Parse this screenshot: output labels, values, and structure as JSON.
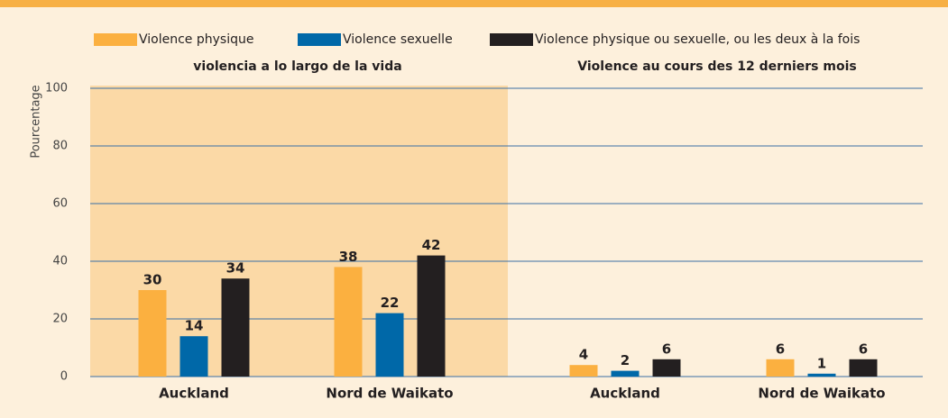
{
  "chart_data": {
    "type": "bar",
    "y_label": "Pourcentage",
    "ylim": [
      0,
      100
    ],
    "yticks": [
      0,
      20,
      40,
      60,
      80,
      100
    ],
    "grid": true,
    "legend": "top",
    "series": [
      {
        "name": "Violence physique",
        "color": "#fbb040"
      },
      {
        "name": "Violence sexuelle",
        "color": "#0068a8"
      },
      {
        "name": "Violence physique ou sexuelle, ou les deux à la fois",
        "color": "#231f20"
      }
    ],
    "panels": [
      {
        "title": "violencia a lo largo de la vida",
        "categories": [
          "Auckland",
          "Nord de Waikato"
        ],
        "values": [
          [
            30,
            38
          ],
          [
            14,
            22
          ],
          [
            34,
            42
          ]
        ]
      },
      {
        "title": "Violence au cours des 12 derniers mois",
        "categories": [
          "Auckland",
          "Nord de Waikato"
        ],
        "values": [
          [
            4,
            6
          ],
          [
            2,
            1
          ],
          [
            6,
            6
          ]
        ]
      }
    ]
  }
}
